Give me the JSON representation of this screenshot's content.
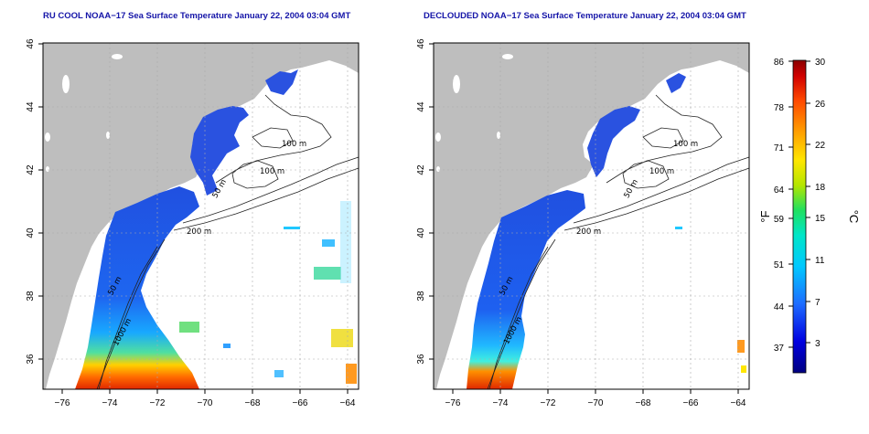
{
  "left_map": {
    "title": "RU COOL NOAA−17 Sea Surface Temperature January 22, 2004 03:04 GMT"
  },
  "right_map": {
    "title": "DECLOUDED NOAA−17 Sea Surface Temperature January 22, 2004 03:04 GMT"
  },
  "axes": {
    "x_ticks": [
      "−76",
      "−74",
      "−72",
      "−70",
      "−68",
      "−66",
      "−64"
    ],
    "y_ticks": [
      "46",
      "44",
      "42",
      "40",
      "38",
      "36"
    ]
  },
  "contours": {
    "m50": "50 m",
    "m100": "100 m",
    "m200": "200 m",
    "m1000": "1000 m"
  },
  "colorbar": {
    "fahrenheit_unit": "°F",
    "celsius_unit": "°C",
    "fahrenheit_ticks": [
      "86",
      "78",
      "71",
      "64",
      "59",
      "51",
      "44",
      "37"
    ],
    "celsius_ticks": [
      "30",
      "26",
      "22",
      "18",
      "15",
      "11",
      "7",
      "3"
    ]
  },
  "colors": {
    "land": "#bebebe",
    "ocean": "#ffffff",
    "cold": "#1e3cdc",
    "warm": "#e83a10",
    "title": "#1515a8"
  }
}
